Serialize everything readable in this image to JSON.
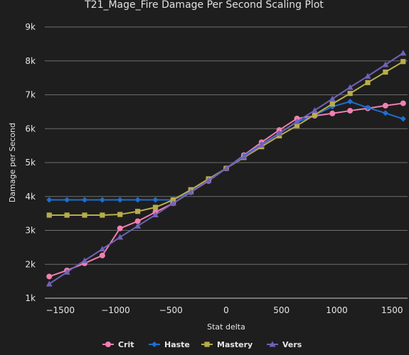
{
  "chart_data": {
    "type": "line",
    "title": "T21_Mage_Fire Damage Per Second Scaling Plot",
    "xlabel": "Stat delta",
    "ylabel": "Damage per Second",
    "xlim": [
      -1640,
      1640
    ],
    "ylim": [
      1000,
      9000
    ],
    "x_ticks": [
      -1500,
      -1000,
      -500,
      0,
      500,
      1000,
      1500
    ],
    "x_tick_labels": [
      "−1500",
      "−1000",
      "−500",
      "0",
      "500",
      "1000",
      "1500"
    ],
    "y_ticks": [
      1000,
      2000,
      3000,
      4000,
      5000,
      6000,
      7000,
      8000,
      9000
    ],
    "y_tick_labels": [
      "1k",
      "2k",
      "3k",
      "4k",
      "5k",
      "6k",
      "7k",
      "8k",
      "9k"
    ],
    "grid": "horizontal",
    "legend_position": "bottom",
    "x": [
      -1600,
      -1440,
      -1280,
      -1120,
      -960,
      -800,
      -640,
      -480,
      -320,
      -160,
      0,
      160,
      320,
      480,
      640,
      800,
      960,
      1120,
      1280,
      1440,
      1600
    ],
    "series": [
      {
        "name": "Crit",
        "color": "#f27fb1",
        "marker": "circle",
        "values": [
          1640,
          1820,
          2030,
          2260,
          3060,
          3270,
          3540,
          3800,
          4130,
          4460,
          4830,
          5220,
          5600,
          5960,
          6300,
          6380,
          6450,
          6530,
          6600,
          6680,
          6750
        ]
      },
      {
        "name": "Haste",
        "color": "#1f6fd1",
        "marker": "diamond",
        "values": [
          3900,
          3900,
          3900,
          3900,
          3900,
          3900,
          3900,
          3900,
          4150,
          4470,
          4830,
          5200,
          5540,
          5870,
          6190,
          6400,
          6650,
          6800,
          6620,
          6460,
          6290
        ]
      },
      {
        "name": "Mastery",
        "color": "#b8ad4c",
        "marker": "square",
        "values": [
          3450,
          3450,
          3450,
          3450,
          3470,
          3560,
          3680,
          3900,
          4200,
          4520,
          4830,
          5150,
          5470,
          5790,
          6090,
          6410,
          6730,
          7040,
          7360,
          7670,
          7980
        ]
      },
      {
        "name": "Vers",
        "color": "#7062b8",
        "marker": "triangle",
        "values": [
          1420,
          1770,
          2110,
          2450,
          2800,
          3130,
          3460,
          3800,
          4130,
          4480,
          4830,
          5170,
          5520,
          5860,
          6210,
          6540,
          6880,
          7220,
          7550,
          7890,
          8230
        ]
      }
    ]
  }
}
